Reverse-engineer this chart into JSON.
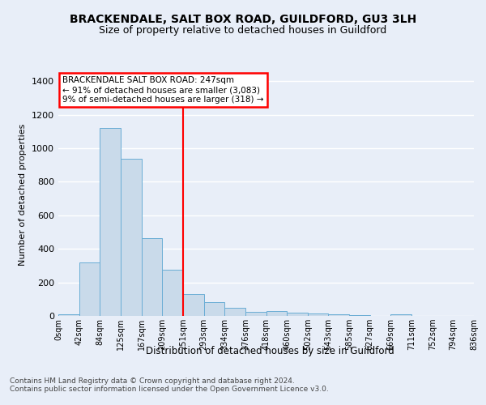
{
  "title1": "BRACKENDALE, SALT BOX ROAD, GUILDFORD, GU3 3LH",
  "title2": "Size of property relative to detached houses in Guildford",
  "xlabel": "Distribution of detached houses by size in Guildford",
  "ylabel": "Number of detached properties",
  "bin_labels": [
    "0sqm",
    "42sqm",
    "84sqm",
    "125sqm",
    "167sqm",
    "209sqm",
    "251sqm",
    "293sqm",
    "334sqm",
    "376sqm",
    "418sqm",
    "460sqm",
    "502sqm",
    "543sqm",
    "585sqm",
    "627sqm",
    "669sqm",
    "711sqm",
    "752sqm",
    "794sqm",
    "836sqm"
  ],
  "bar_values": [
    10,
    320,
    1120,
    940,
    465,
    275,
    130,
    80,
    48,
    25,
    30,
    20,
    15,
    10,
    5,
    2,
    10,
    2,
    1,
    0
  ],
  "bar_color": "#c9daea",
  "bar_edge_color": "#6aadd5",
  "annotation_title": "BRACKENDALE SALT BOX ROAD: 247sqm",
  "annotation_line1": "← 91% of detached houses are smaller (3,083)",
  "annotation_line2": "9% of semi-detached houses are larger (318) →",
  "ylim": [
    0,
    1450
  ],
  "yticks": [
    0,
    200,
    400,
    600,
    800,
    1000,
    1200,
    1400
  ],
  "vline_index": 6,
  "footer1": "Contains HM Land Registry data © Crown copyright and database right 2024.",
  "footer2": "Contains public sector information licensed under the Open Government Licence v3.0.",
  "background_color": "#e8eef8",
  "plot_bg_color": "#e8eef8",
  "grid_color": "#ffffff"
}
